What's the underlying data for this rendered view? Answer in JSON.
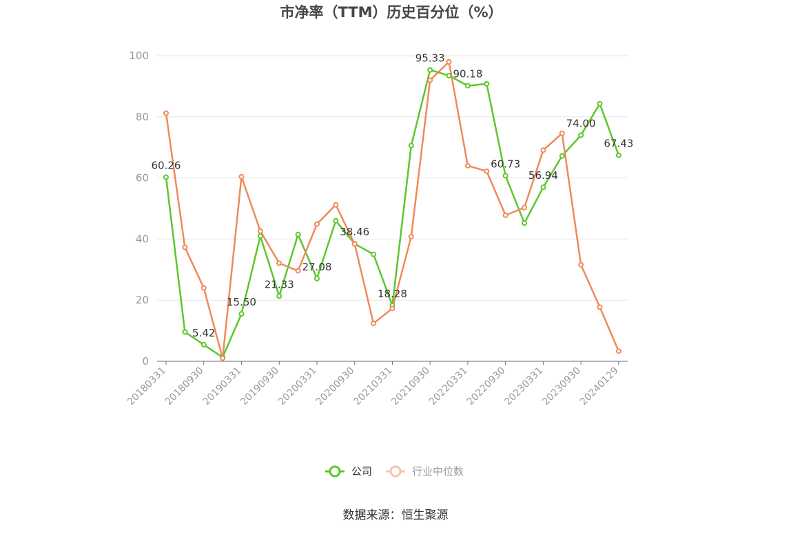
{
  "chart_data": {
    "type": "line",
    "title": "市净率（TTM）历史百分位（%）",
    "source": "数据来源：恒生聚源",
    "ylim": [
      0,
      100
    ],
    "y_ticks": [
      0,
      20,
      40,
      60,
      80,
      100
    ],
    "x": [
      "20180331",
      "20180630",
      "20180930",
      "20181231",
      "20190331",
      "20190630",
      "20190930",
      "20191231",
      "20200331",
      "20200630",
      "20200930",
      "20201231",
      "20210331",
      "20210630",
      "20210930",
      "20211231",
      "20220331",
      "20220630",
      "20220930",
      "20221231",
      "20230331",
      "20230630",
      "20230930",
      "20231231",
      "20240129"
    ],
    "x_tick_labels": [
      "20180331",
      "20180930",
      "20190331",
      "20190930",
      "20200331",
      "20200930",
      "20210331",
      "20210930",
      "20220331",
      "20220930",
      "20230331",
      "20230930",
      "20240129"
    ],
    "grid": true,
    "legend_position": "bottom",
    "series": [
      {
        "name": "公司",
        "color": "#5cc72b",
        "values": [
          60.26,
          9.6,
          5.42,
          1.3,
          15.5,
          41.0,
          21.33,
          41.5,
          27.08,
          46.0,
          38.46,
          35.0,
          18.28,
          70.6,
          95.33,
          93.5,
          90.18,
          90.8,
          60.73,
          45.2,
          56.94,
          67.2,
          74.0,
          84.3,
          67.43
        ],
        "labels": {
          "0": "60.26",
          "2": "5.42",
          "4": "15.50",
          "6": "21.33",
          "8": "27.08",
          "10": "38.46",
          "12": "18.28",
          "14": "95.33",
          "16": "90.18",
          "18": "60.73",
          "20": "56.94",
          "22": "74.00",
          "24": "67.43"
        }
      },
      {
        "name": "行业中位数",
        "color": "#f0895a",
        "values": [
          81.2,
          37.3,
          24.0,
          1.0,
          60.4,
          42.6,
          32.1,
          29.6,
          44.9,
          51.2,
          38.4,
          12.4,
          17.3,
          40.8,
          92.0,
          98.0,
          64.0,
          62.2,
          47.8,
          50.3,
          69.1,
          74.6,
          31.6,
          17.7,
          3.3
        ]
      }
    ]
  }
}
